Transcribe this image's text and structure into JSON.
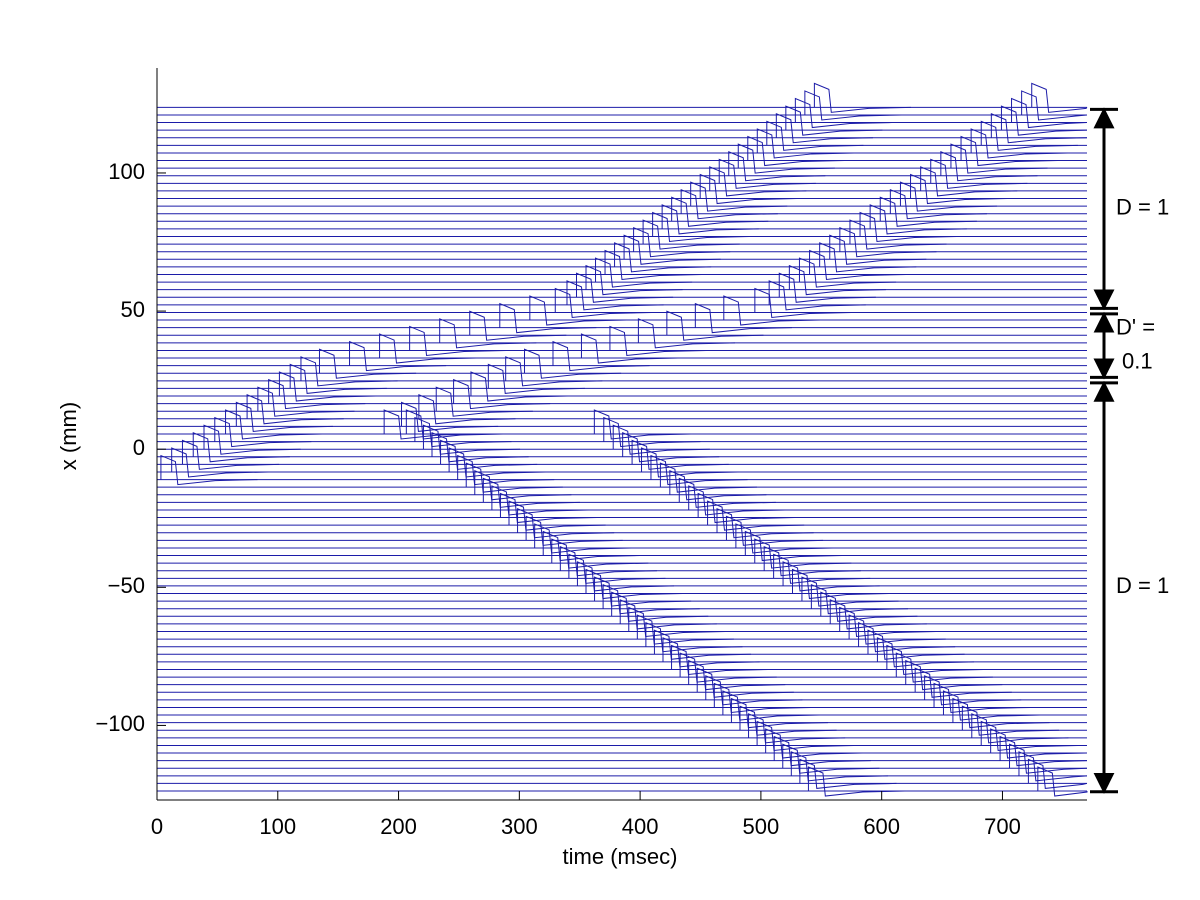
{
  "chart_data": {
    "type": "waterfall",
    "xlabel": "time (msec)",
    "ylabel": "x (mm)",
    "xlim": [
      0,
      770
    ],
    "ylim": [
      -127,
      138
    ],
    "xticks": [
      0,
      100,
      200,
      300,
      400,
      500,
      600,
      700
    ],
    "yticks": [
      {
        "value": -100,
        "label": "−100"
      },
      {
        "value": -50,
        "label": "−50"
      },
      0,
      50,
      100
    ],
    "color": "#1c1ca8",
    "traces": [
      -123.75,
      -121,
      -118.25,
      -115.5,
      -112.75,
      -110,
      -107.25,
      -104.5,
      -101.75,
      -99,
      -96.25,
      -93.5,
      -90.75,
      -88,
      -85.25,
      -82.5,
      -79.75,
      -77,
      -74.25,
      -71.5,
      -68.75,
      -66,
      -63.25,
      -60.5,
      -57.75,
      -55,
      -52.25,
      -49.5,
      -46.75,
      -44,
      -41.25,
      -38.5,
      -35.75,
      -33,
      -30.25,
      -27.5,
      -24.75,
      -22,
      -19.25,
      -16.5,
      -13.75,
      -11,
      -8.25,
      -5.5,
      -2.75,
      0,
      2.75,
      5.5,
      8.25,
      11,
      13.75,
      16.5,
      19.25,
      22,
      24.75,
      27.5,
      30.25,
      33,
      35.75,
      38.5,
      41.25,
      44,
      46.75,
      49.5,
      52.25,
      55,
      57.75,
      60.5,
      63.25,
      66,
      68.75,
      71.5,
      74.25,
      77,
      79.75,
      82.5,
      85.25,
      88,
      90.75,
      93.5,
      96.25,
      99,
      101.75,
      104.5,
      107.25,
      110,
      112.75,
      115.5,
      118.25,
      121,
      123.75
    ],
    "waves": [
      {
        "x": [
          -12,
          25,
          27,
          48,
          50,
          124
        ],
        "t": [
          0,
          120,
          130,
          320,
          333,
          545
        ]
      },
      {
        "x": [
          3,
          25,
          27,
          48,
          50,
          124
        ],
        "t": [
          175,
          290,
          300,
          480,
          500,
          725
        ]
      },
      {
        "x": [
          8,
          -124
        ],
        "t": [
          200,
          540
        ]
      },
      {
        "x": [
          8,
          -124
        ],
        "t": [
          355,
          730
        ]
      }
    ],
    "regions": [
      {
        "from": 51,
        "to": 123,
        "label": [
          "D = 1"
        ]
      },
      {
        "from": 26,
        "to": 49,
        "label": [
          "D' =",
          "0.1"
        ]
      },
      {
        "from": -124,
        "to": 24,
        "label": [
          "D = 1"
        ]
      }
    ]
  }
}
